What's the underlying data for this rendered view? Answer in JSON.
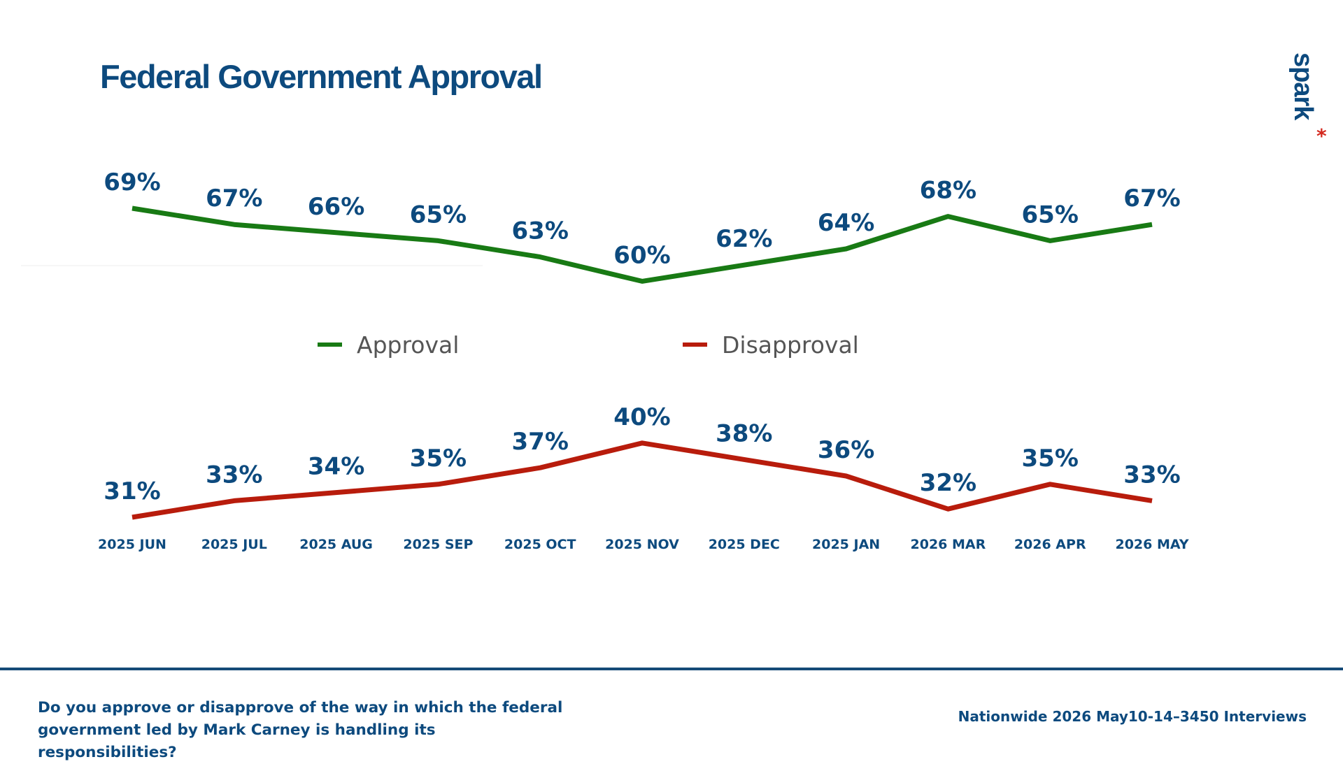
{
  "header": {
    "title": "Federal Government Approval"
  },
  "logo": {
    "text": "spark",
    "mark": "*"
  },
  "colors": {
    "approval": "#187a14",
    "disapproval": "#b81c0c",
    "text": "#0d4a7e",
    "legend_text": "#555555"
  },
  "chart_data": {
    "type": "line",
    "title": "Federal Government Approval",
    "categories": [
      "2025 JUN",
      "2025 JUL",
      "2025 AUG",
      "2025 SEP",
      "2025 OCT",
      "2025 NOV",
      "2025 DEC",
      "2025 JAN",
      "2026 MAR",
      "2026 APR",
      "2026 MAY"
    ],
    "series": [
      {
        "name": "Approval",
        "values": [
          69,
          67,
          66,
          65,
          63,
          60,
          62,
          64,
          68,
          65,
          67
        ],
        "labels": [
          "69%",
          "67%",
          "66%",
          "65%",
          "63%",
          "60%",
          "62%",
          "64%",
          "68%",
          "65%",
          "67%"
        ],
        "color": "#187a14"
      },
      {
        "name": "Disapproval",
        "values": [
          31,
          33,
          34,
          35,
          37,
          40,
          38,
          36,
          32,
          35,
          33
        ],
        "labels": [
          "31%",
          "33%",
          "34%",
          "35%",
          "37%",
          "40%",
          "38%",
          "36%",
          "32%",
          "35%",
          "33%"
        ],
        "color": "#b81c0c"
      }
    ],
    "unit": "%",
    "legend_position": "center",
    "grid": false,
    "xlabel": "",
    "ylabel": ""
  },
  "footer": {
    "question": "Do you approve or disapprove of the way in which the federal government led by Mark Carney is handling its responsibilities?",
    "source": "Nationwide 2026 May10-14–3450 Interviews"
  }
}
